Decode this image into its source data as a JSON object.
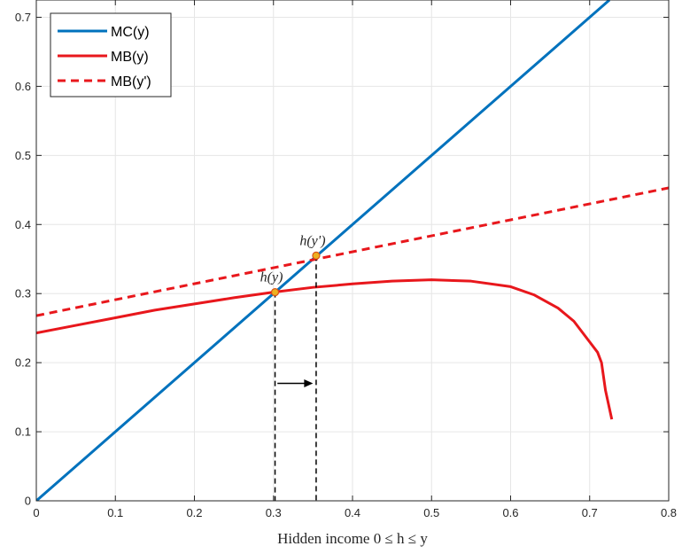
{
  "chart_data": {
    "type": "line",
    "xlabel": "Hidden income 0 ≤ h ≤ y",
    "ylabel": "",
    "xlim": [
      0,
      0.8
    ],
    "ylim": [
      0,
      0.725
    ],
    "xticks": [
      "0",
      "0.1",
      "0.2",
      "0.3",
      "0.4",
      "0.5",
      "0.6",
      "0.7",
      "0.8"
    ],
    "yticks": [
      "0",
      "0.1",
      "0.2",
      "0.3",
      "0.4",
      "0.5",
      "0.6",
      "0.7"
    ],
    "grid": true,
    "legend_position": "top-left",
    "series": [
      {
        "name": "MC(y)",
        "color": "#0072BD",
        "style": "solid",
        "x": [
          0,
          0.725
        ],
        "y": [
          0,
          0.725
        ]
      },
      {
        "name": "MB(y)",
        "color": "#E8171C",
        "style": "solid",
        "x": [
          0,
          0.05,
          0.1,
          0.15,
          0.2,
          0.25,
          0.3,
          0.35,
          0.4,
          0.45,
          0.5,
          0.55,
          0.6,
          0.63,
          0.66,
          0.68,
          0.7,
          0.71,
          0.715,
          0.72,
          0.728
        ],
        "y": [
          0.243,
          0.254,
          0.265,
          0.276,
          0.285,
          0.294,
          0.302,
          0.309,
          0.314,
          0.318,
          0.32,
          0.318,
          0.31,
          0.298,
          0.279,
          0.26,
          0.23,
          0.215,
          0.2,
          0.16,
          0.118
        ]
      },
      {
        "name": "MB(y')",
        "color": "#E8171C",
        "style": "dashed",
        "x": [
          0,
          0.8
        ],
        "y": [
          0.268,
          0.453
        ]
      }
    ],
    "annotations": [
      {
        "label": "h(y)",
        "x": 0.302,
        "y": 0.302
      },
      {
        "label": "h(y')",
        "x": 0.354,
        "y": 0.355
      }
    ],
    "arrow": {
      "from_x": 0.305,
      "to_x": 0.35,
      "y": 0.17
    }
  }
}
